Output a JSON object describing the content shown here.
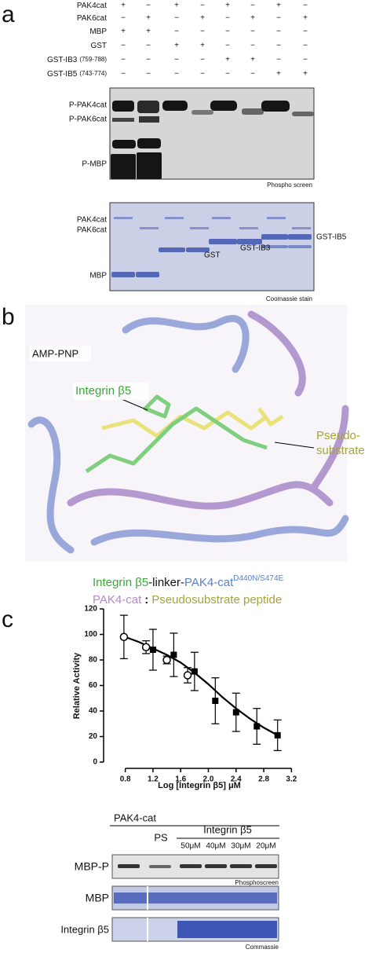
{
  "panel_a": {
    "label": "a",
    "conditions": [
      {
        "name": "PAK4cat",
        "signs": [
          "+",
          "−",
          "+",
          "−",
          "+",
          "−",
          "+",
          "−"
        ]
      },
      {
        "name": "PAK6cat",
        "signs": [
          "−",
          "+",
          "−",
          "+",
          "−",
          "+",
          "−",
          "+"
        ]
      },
      {
        "name": "MBP",
        "signs": [
          "+",
          "+",
          "−",
          "−",
          "−",
          "−",
          "−",
          "−"
        ]
      },
      {
        "name": "GST",
        "signs": [
          "−",
          "−",
          "+",
          "+",
          "−",
          "−",
          "−",
          "−"
        ]
      },
      {
        "name": "GST-IB3",
        "range": "(759-788)",
        "signs": [
          "−",
          "−",
          "−",
          "−",
          "+",
          "+",
          "−",
          "−"
        ]
      },
      {
        "name": "GST-IB5",
        "range": "(743-774)",
        "signs": [
          "−",
          "−",
          "−",
          "−",
          "−",
          "−",
          "+",
          "+"
        ]
      }
    ],
    "phospho": {
      "labels": [
        "P-PAK4cat",
        "P-PAK6cat",
        "P-MBP"
      ],
      "caption": "Phospho screen"
    },
    "coomassie": {
      "labels": [
        "PAK4cat",
        "PAK6cat",
        "MBP"
      ],
      "band_labels": [
        "GST",
        "GST-IB3",
        "GST-IB5"
      ],
      "caption": "Coomassie stain"
    }
  },
  "panel_b": {
    "label": "b",
    "labels": {
      "amp_pnp": "AMP-PNP",
      "integrin": "Integrin β5",
      "pseudo": [
        "Pseudo-",
        "substrate"
      ]
    },
    "legend_line1": {
      "integrin": "Integrin β5",
      "linker": "-linker-",
      "pak4": "PAK4-cat",
      "mutation": "D440N/S474E"
    },
    "legend_line2": {
      "pak4": "PAK4-cat",
      "sep": ":",
      "peptide": "Pseudosubstrate peptide"
    }
  },
  "panel_c": {
    "label": "c",
    "blot": {
      "header": "PAK4-cat",
      "ps": "PS",
      "integrin": "Integrin β5",
      "concentrations": [
        "50μM",
        "40μM",
        "30μM",
        "20μM"
      ],
      "rows": [
        "MBP-P",
        "MBP",
        "Integrin β5"
      ],
      "captions": [
        "Phosphoscreen",
        "Commassie"
      ]
    }
  },
  "chart_data": {
    "type": "scatter",
    "xlabel": "Log [Integrin β5] μM",
    "ylabel": "Relative Activity",
    "xlim": [
      0.6,
      3.4
    ],
    "ylim": [
      0,
      120
    ],
    "xticks": [
      0.8,
      1.2,
      1.6,
      2.0,
      2.4,
      2.8,
      3.2
    ],
    "yticks": [
      0,
      20,
      40,
      60,
      80,
      100,
      120
    ],
    "series": [
      {
        "marker": "open-circle",
        "color": "#000000",
        "x": [
          0.78,
          1.1,
          1.4,
          1.7
        ],
        "values": [
          98,
          90,
          80,
          68
        ],
        "errors": [
          17,
          5,
          3,
          6
        ]
      },
      {
        "marker": "filled-square",
        "color": "#000000",
        "x": [
          1.2,
          1.5,
          1.8,
          2.1,
          2.4,
          2.7,
          3.0
        ],
        "values": [
          88,
          84,
          71,
          48,
          39,
          28,
          21
        ],
        "errors": [
          16,
          17,
          15,
          18,
          15,
          14,
          12
        ]
      },
      {
        "marker": "line",
        "color": "#000000",
        "x": [
          0.8,
          1.0,
          1.2,
          1.4,
          1.6,
          1.8,
          2.0,
          2.2,
          2.4,
          2.6,
          2.8,
          3.0
        ],
        "values": [
          98,
          94,
          89,
          84,
          78,
          70,
          61,
          51,
          42,
          34,
          27,
          21
        ]
      }
    ]
  }
}
